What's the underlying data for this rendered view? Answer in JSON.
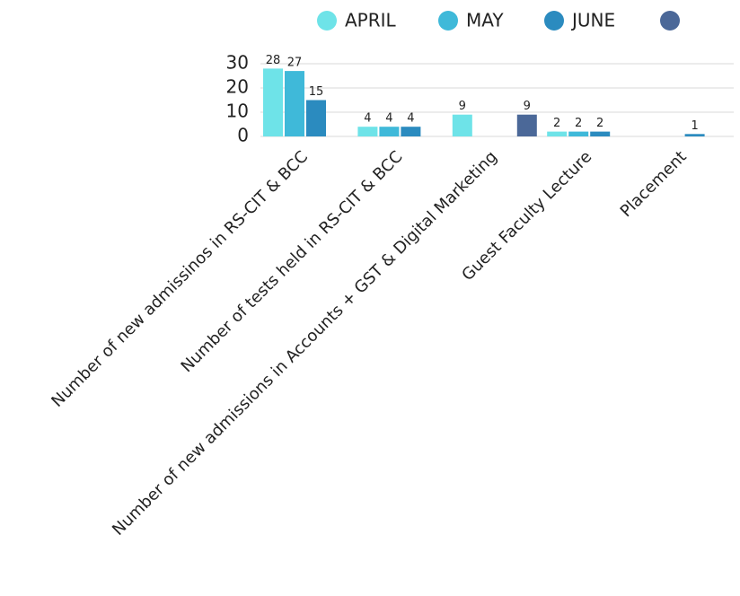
{
  "chart_data": {
    "type": "bar",
    "categories": [
      "Number of new admissinos in RS-CIT & BCC",
      "Number of tests held in RS-CIT & BCC",
      "Number of new admissions in Accounts + GST & Digital Marketing",
      "Guest Faculty Lecture",
      "Placement"
    ],
    "series": [
      {
        "name": "APRIL",
        "color": "#6ee3e8",
        "values": [
          28,
          4,
          9,
          2,
          null
        ]
      },
      {
        "name": "MAY",
        "color": "#3fb9d9",
        "values": [
          27,
          4,
          null,
          2,
          null
        ]
      },
      {
        "name": "JUNE",
        "color": "#2b8bbf",
        "values": [
          15,
          4,
          null,
          2,
          1
        ]
      },
      {
        "color": "#4b6898",
        "values": [
          null,
          null,
          9,
          null,
          null
        ]
      }
    ],
    "ylim": [
      0,
      30
    ],
    "yticks": [
      0,
      10,
      20,
      30
    ],
    "grid": true,
    "legend": "top"
  }
}
